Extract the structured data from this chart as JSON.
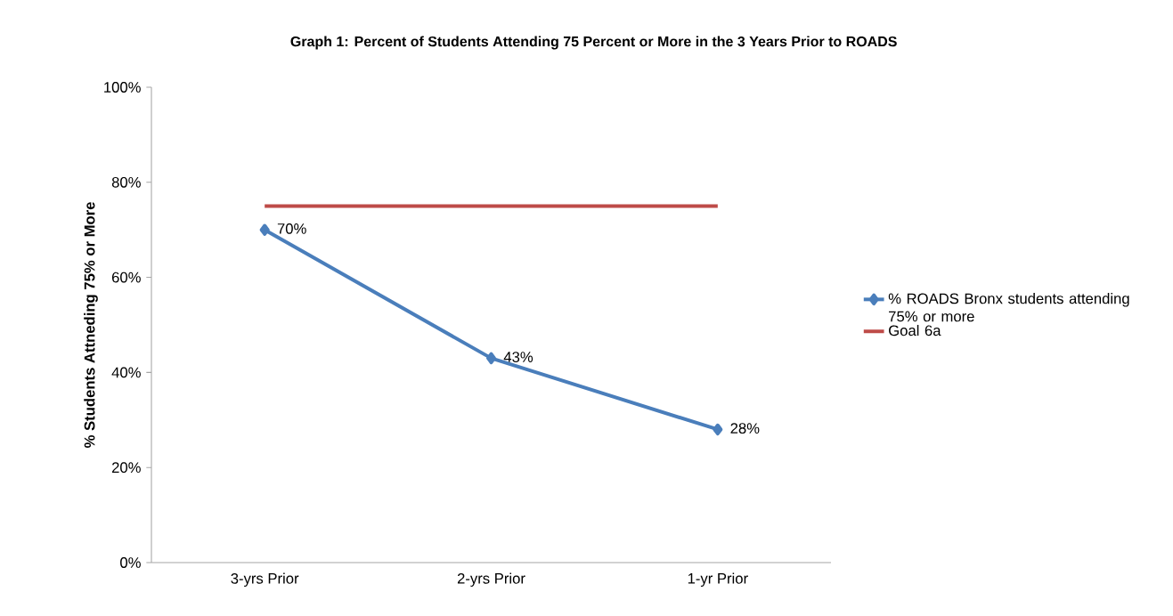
{
  "chart_data": {
    "type": "line",
    "title": "Graph 1: Percent of Students Attending 75 Percent or More in the 3 Years Prior to ROADS",
    "ylabel": "% Students Attneding 75% or More",
    "categories": [
      "3-yrs Prior",
      "2-yrs Prior",
      "1-yr Prior"
    ],
    "series": [
      {
        "name": "% ROADS Bronx students attending 75% or more",
        "color": "#4a7ebb",
        "values": [
          70,
          43,
          28
        ],
        "marker": "diamond",
        "value_labels": [
          "70%",
          "43%",
          "28%"
        ]
      },
      {
        "name": "Goal 6a",
        "color": "#be4b48",
        "values": [
          75,
          75,
          75
        ],
        "marker": "none"
      }
    ],
    "ylim": [
      0,
      100
    ],
    "yticks": [
      {
        "value": 0,
        "label": "0%"
      },
      {
        "value": 20,
        "label": "20%"
      },
      {
        "value": 40,
        "label": "40%"
      },
      {
        "value": 60,
        "label": "60%"
      },
      {
        "value": 80,
        "label": "80%"
      },
      {
        "value": 100,
        "label": "100%"
      }
    ],
    "grid": false,
    "legend": "right",
    "line_style": "solid"
  }
}
